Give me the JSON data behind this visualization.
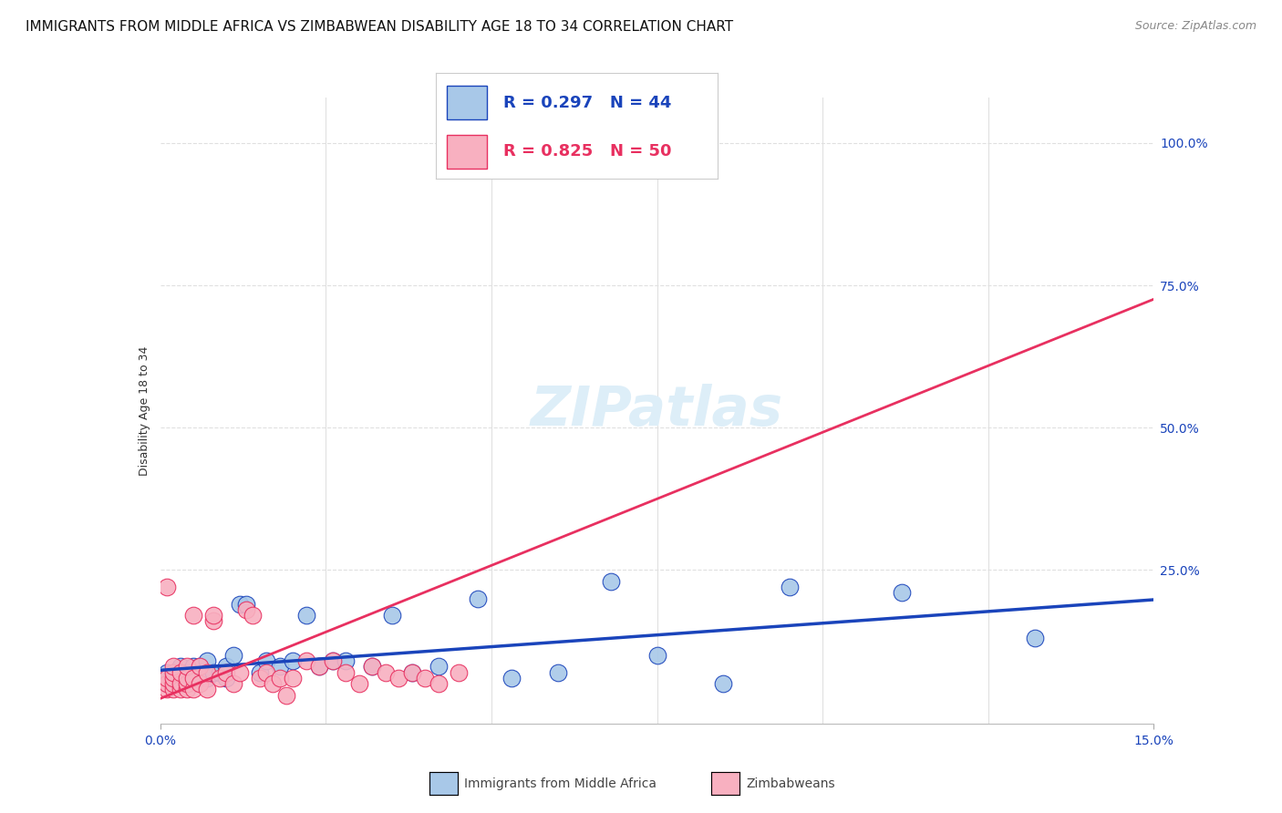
{
  "title": "IMMIGRANTS FROM MIDDLE AFRICA VS ZIMBABWEAN DISABILITY AGE 18 TO 34 CORRELATION CHART",
  "source": "Source: ZipAtlas.com",
  "ylabel": "Disability Age 18 to 34",
  "ytick_labels": [
    "25.0%",
    "50.0%",
    "75.0%",
    "100.0%"
  ],
  "ytick_values": [
    0.25,
    0.5,
    0.75,
    1.0
  ],
  "xlim": [
    0.0,
    0.15
  ],
  "ylim": [
    -0.02,
    1.08
  ],
  "label_blue": "Immigrants from Middle Africa",
  "label_pink": "Zimbabweans",
  "color_blue": "#a8c8e8",
  "color_pink": "#f8b0c0",
  "line_color_blue": "#1a44bb",
  "line_color_pink": "#e83060",
  "legend_text_blue": "R = 0.297   N = 44",
  "legend_text_pink": "R = 0.825   N = 50",
  "watermark": "ZIPatlas",
  "watermark_color": "#ddeef8",
  "background_color": "#ffffff",
  "grid_color": "#e0e0e0",
  "title_fontsize": 11,
  "source_fontsize": 9,
  "axis_label_fontsize": 9,
  "tick_fontsize": 10,
  "legend_fontsize": 13,
  "watermark_fontsize": 44,
  "blue_points_x": [
    0.001,
    0.001,
    0.002,
    0.002,
    0.003,
    0.003,
    0.003,
    0.004,
    0.004,
    0.005,
    0.005,
    0.005,
    0.006,
    0.006,
    0.007,
    0.007,
    0.008,
    0.009,
    0.01,
    0.01,
    0.011,
    0.012,
    0.013,
    0.015,
    0.016,
    0.018,
    0.02,
    0.022,
    0.024,
    0.026,
    0.028,
    0.032,
    0.035,
    0.038,
    0.042,
    0.048,
    0.053,
    0.06,
    0.068,
    0.075,
    0.085,
    0.095,
    0.112,
    0.132
  ],
  "blue_points_y": [
    0.05,
    0.07,
    0.05,
    0.07,
    0.05,
    0.06,
    0.08,
    0.05,
    0.07,
    0.05,
    0.06,
    0.08,
    0.06,
    0.08,
    0.06,
    0.09,
    0.07,
    0.07,
    0.06,
    0.08,
    0.1,
    0.19,
    0.19,
    0.07,
    0.09,
    0.08,
    0.09,
    0.17,
    0.08,
    0.09,
    0.09,
    0.08,
    0.17,
    0.07,
    0.08,
    0.2,
    0.06,
    0.07,
    0.23,
    0.1,
    0.05,
    0.22,
    0.21,
    0.13
  ],
  "pink_points_x": [
    0.001,
    0.001,
    0.001,
    0.001,
    0.002,
    0.002,
    0.002,
    0.002,
    0.002,
    0.003,
    0.003,
    0.003,
    0.004,
    0.004,
    0.004,
    0.004,
    0.005,
    0.005,
    0.005,
    0.006,
    0.006,
    0.007,
    0.007,
    0.008,
    0.008,
    0.009,
    0.01,
    0.011,
    0.012,
    0.013,
    0.014,
    0.015,
    0.016,
    0.017,
    0.018,
    0.019,
    0.02,
    0.022,
    0.024,
    0.026,
    0.028,
    0.03,
    0.032,
    0.034,
    0.036,
    0.038,
    0.04,
    0.042,
    0.045,
    0.075
  ],
  "pink_points_y": [
    0.04,
    0.05,
    0.06,
    0.22,
    0.04,
    0.05,
    0.06,
    0.07,
    0.08,
    0.04,
    0.05,
    0.07,
    0.04,
    0.05,
    0.06,
    0.08,
    0.04,
    0.06,
    0.17,
    0.05,
    0.08,
    0.04,
    0.07,
    0.16,
    0.17,
    0.06,
    0.07,
    0.05,
    0.07,
    0.18,
    0.17,
    0.06,
    0.07,
    0.05,
    0.06,
    0.03,
    0.06,
    0.09,
    0.08,
    0.09,
    0.07,
    0.05,
    0.08,
    0.07,
    0.06,
    0.07,
    0.06,
    0.05,
    0.07,
    1.0
  ]
}
